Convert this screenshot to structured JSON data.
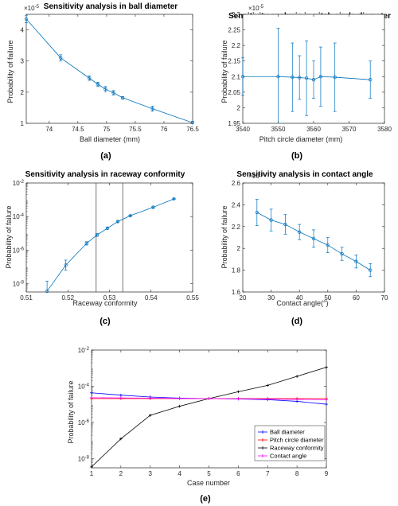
{
  "chart_data": [
    {
      "id": "a",
      "type": "line",
      "title": "Sensitivity analysis in ball diameter",
      "xlabel": "Ball diameter (mm)",
      "ylabel": "Probability of failure",
      "panel_label": "(a)",
      "y_multiplier": "×10",
      "y_exponent": "-5",
      "xlim": [
        73.6,
        76.5
      ],
      "ylim": [
        1,
        4.5
      ],
      "xticks": [
        74,
        74.5,
        75,
        75.5,
        76,
        76.5
      ],
      "xtick_labels": [
        "74",
        "74.5",
        "75",
        "75.5",
        "76",
        "76.5"
      ],
      "yticks": [
        1,
        2,
        3,
        4
      ],
      "ytick_labels": [
        "1",
        "2",
        "3",
        "4"
      ],
      "scale": "linear",
      "color": "#0072BD",
      "series": [
        {
          "x": [
            73.6,
            74.2,
            74.7,
            74.85,
            74.98,
            75.12,
            75.28,
            75.8,
            76.5
          ],
          "y": [
            4.35,
            3.1,
            2.45,
            2.25,
            2.1,
            1.98,
            1.82,
            1.47,
            1.02
          ],
          "err": [
            0.12,
            0.1,
            0.07,
            0.07,
            0.08,
            0.07,
            0.04,
            0.08,
            0.04
          ]
        }
      ]
    },
    {
      "id": "b",
      "type": "line",
      "title": "Sensitivity analysis in pitch circle diameter",
      "xlabel": "Pitch circle diameter (mm)",
      "ylabel": "Probability of failure",
      "panel_label": "(b)",
      "y_multiplier": "×10",
      "y_exponent": "-5",
      "xlim": [
        3540,
        3580
      ],
      "ylim": [
        1.95,
        2.3
      ],
      "xticks": [
        3540,
        3550,
        3560,
        3570,
        3580
      ],
      "xtick_labels": [
        "3540",
        "3550",
        "3560",
        "3570",
        "3580"
      ],
      "yticks": [
        1.95,
        2,
        2.05,
        2.1,
        2.15,
        2.2,
        2.25,
        2.3
      ],
      "ytick_labels": [
        "1.95",
        "2",
        "2.05",
        "2.1",
        "2.15",
        "2.2",
        "2.25",
        "2.3"
      ],
      "scale": "linear",
      "color": "#0072BD",
      "series": [
        {
          "x": [
            3540,
            3550,
            3554,
            3556,
            3558,
            3560,
            3562,
            3566,
            3576
          ],
          "y": [
            2.1,
            2.1,
            2.098,
            2.097,
            2.095,
            2.09,
            2.1,
            2.098,
            2.09
          ],
          "err": [
            0.06,
            0.155,
            0.11,
            0.07,
            0.12,
            0.06,
            0.095,
            0.11,
            0.06
          ]
        }
      ]
    },
    {
      "id": "c",
      "type": "line",
      "title": "Sensitivity analysis in raceway conformity",
      "xlabel": "Raceway conformity",
      "ylabel": "Probability of failure",
      "panel_label": "(c)",
      "xlim": [
        0.51,
        0.55
      ],
      "ylim_log10": [
        -8.5,
        -2
      ],
      "xticks": [
        0.51,
        0.52,
        0.53,
        0.54,
        0.55
      ],
      "xtick_labels": [
        "0.51",
        "0.52",
        "0.53",
        "0.54",
        "0.55"
      ],
      "yticks_log10": [
        -8,
        -6,
        -4,
        -2
      ],
      "ytick_bases": [
        "10",
        "10",
        "10",
        "10"
      ],
      "ytick_exps": [
        "-8",
        "-6",
        "-4",
        "-2"
      ],
      "scale": "log",
      "vlines": [
        0.5268,
        0.5332
      ],
      "color": "#0072BD",
      "series": [
        {
          "x": [
            0.515,
            0.5195,
            0.5245,
            0.527,
            0.5295,
            0.532,
            0.535,
            0.5405,
            0.5455
          ],
          "y_log10": [
            -8.45,
            -6.9,
            -5.6,
            -5.1,
            -4.7,
            -4.3,
            -3.95,
            -3.45,
            -2.95
          ],
          "err_log10": [
            0.6,
            0.3,
            0.1,
            0.08,
            0.06,
            0.05,
            0.04,
            0.03,
            0.03
          ]
        }
      ]
    },
    {
      "id": "d",
      "type": "line",
      "title": "Sensitivity analysis in contact angle",
      "xlabel": "Contact angle(°)",
      "ylabel": "Probability of failure",
      "panel_label": "(d)",
      "y_multiplier": "×10",
      "y_exponent": "-5",
      "xlim": [
        20,
        70
      ],
      "ylim": [
        1.6,
        2.6
      ],
      "xticks": [
        20,
        30,
        40,
        50,
        60,
        70
      ],
      "xtick_labels": [
        "20",
        "30",
        "40",
        "50",
        "60",
        "70"
      ],
      "yticks": [
        1.6,
        1.8,
        2,
        2.2,
        2.4,
        2.6
      ],
      "ytick_labels": [
        "1.6",
        "1.8",
        "2",
        "2.2",
        "2.4",
        "2.6"
      ],
      "scale": "linear",
      "color": "#0072BD",
      "series": [
        {
          "x": [
            25,
            30,
            35,
            40,
            45,
            50,
            55,
            60,
            65
          ],
          "y": [
            2.33,
            2.26,
            2.22,
            2.15,
            2.09,
            2.03,
            1.95,
            1.88,
            1.8
          ],
          "err": [
            0.12,
            0.1,
            0.09,
            0.07,
            0.08,
            0.07,
            0.06,
            0.06,
            0.06
          ]
        }
      ]
    },
    {
      "id": "e",
      "type": "line",
      "title": "",
      "xlabel": "Case number",
      "ylabel": "Probability of failure",
      "panel_label": "(e)",
      "xlim": [
        1,
        9
      ],
      "ylim_log10": [
        -8.5,
        -2
      ],
      "xticks": [
        1,
        2,
        3,
        4,
        5,
        6,
        7,
        8,
        9
      ],
      "xtick_labels": [
        "1",
        "2",
        "3",
        "4",
        "5",
        "6",
        "7",
        "8",
        "9"
      ],
      "yticks_log10": [
        -8,
        -6,
        -4,
        -2
      ],
      "ytick_bases": [
        "10",
        "10",
        "10",
        "10"
      ],
      "ytick_exps": [
        "-8",
        "-6",
        "-4",
        "-2"
      ],
      "scale": "log",
      "legend": "inside-right",
      "series": [
        {
          "name": "Ball diameter",
          "color": "#0000FF",
          "x": [
            1,
            2,
            3,
            4,
            5,
            6,
            7,
            8,
            9
          ],
          "y_log10": [
            -4.36,
            -4.49,
            -4.59,
            -4.65,
            -4.68,
            -4.7,
            -4.74,
            -4.83,
            -4.99
          ]
        },
        {
          "name": "Pitch circle diameter",
          "color": "#FF0000",
          "x": [
            1,
            2,
            3,
            4,
            5,
            6,
            7,
            8,
            9
          ],
          "y_log10": [
            -4.68,
            -4.68,
            -4.68,
            -4.68,
            -4.68,
            -4.68,
            -4.68,
            -4.68,
            -4.68
          ]
        },
        {
          "name": "Raceway conformity",
          "color": "#000000",
          "x": [
            1,
            2,
            3,
            4,
            5,
            6,
            7,
            8,
            9
          ],
          "y_log10": [
            -8.45,
            -6.9,
            -5.6,
            -5.1,
            -4.68,
            -4.3,
            -3.95,
            -3.45,
            -2.95
          ]
        },
        {
          "name": "Contact angle",
          "color": "#FF00FF",
          "x": [
            1,
            2,
            3,
            4,
            5,
            6,
            7,
            8,
            9
          ],
          "y_log10": [
            -4.63,
            -4.64,
            -4.65,
            -4.67,
            -4.68,
            -4.69,
            -4.71,
            -4.72,
            -4.74
          ]
        }
      ]
    }
  ]
}
